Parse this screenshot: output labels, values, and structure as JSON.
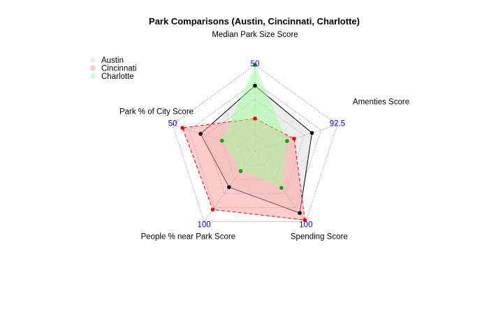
{
  "chart_data": {
    "type": "radar",
    "title": "Park Comparisons (Austin, Cincinnati, Charlotte)",
    "axes": [
      {
        "label": "Median Park Size Score",
        "max_label": "50",
        "max": 50
      },
      {
        "label": "Amenties Score",
        "max_label": "92.5",
        "max": 92.5
      },
      {
        "label": "Spending Score",
        "max_label": "100",
        "max": 100
      },
      {
        "label": "People % near Park Score",
        "max_label": "100",
        "max": 100
      },
      {
        "label": "Park % of City Score",
        "max_label": "50",
        "max": 50
      }
    ],
    "min": 0,
    "grid_rings": 5,
    "series": [
      {
        "name": "Austin",
        "values": [
          38,
          64,
          88,
          51,
          33
        ],
        "fill": "#d9d9d9",
        "line": "#000000",
        "point": "#000000",
        "line_style": "solid"
      },
      {
        "name": "Cincinnati",
        "values": [
          19,
          44,
          98,
          83,
          44
        ],
        "fill": "#ff9999",
        "line": "#ff0000",
        "point": "#ff0000",
        "line_style": "dashed"
      },
      {
        "name": "Charlotte",
        "values": [
          50,
          36,
          52,
          28,
          20
        ],
        "fill": "#99ff99",
        "line": "#00aa00",
        "point": "#00aa00",
        "line_style": "none"
      }
    ],
    "legend_position": "top-left"
  },
  "colors": {
    "grid": "#555555",
    "max_label": "#0000cc"
  }
}
